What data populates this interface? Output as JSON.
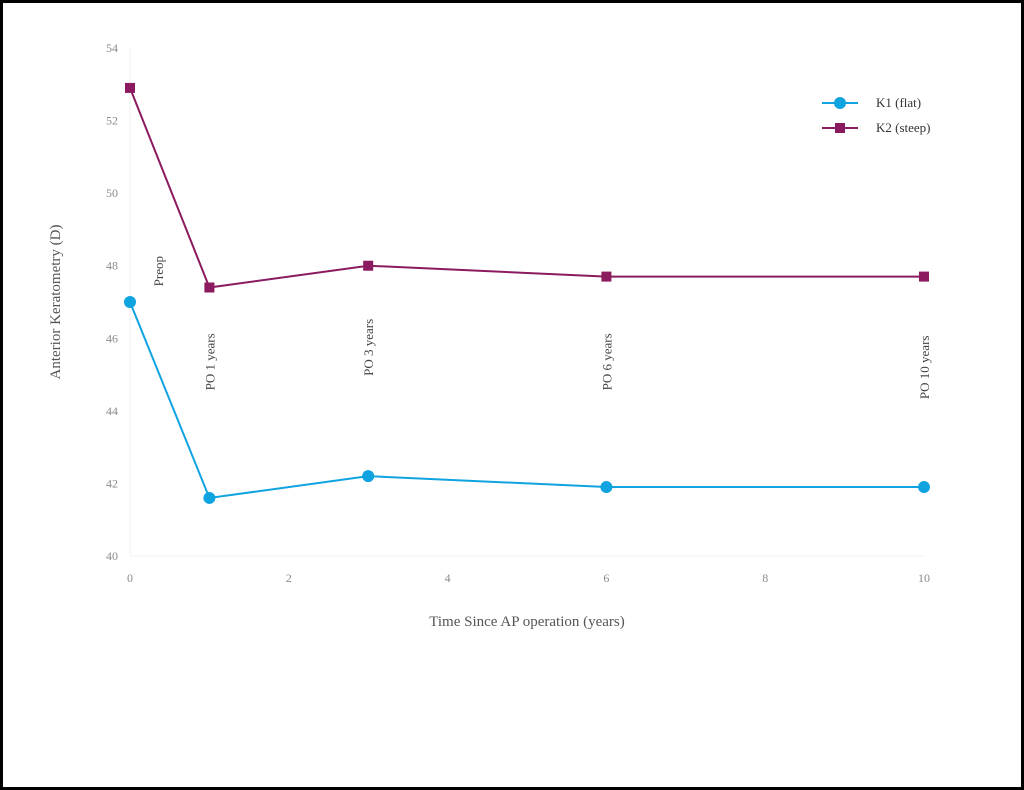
{
  "chart_data": {
    "type": "line",
    "title": "",
    "xlabel": "Time Since AP operation (years)",
    "ylabel": "Anterior Keratometry (D)",
    "xlim": [
      0,
      10
    ],
    "ylim": [
      40,
      54
    ],
    "x_ticks": [
      0,
      2,
      4,
      6,
      8,
      10
    ],
    "y_ticks": [
      40,
      42,
      44,
      46,
      48,
      50,
      52,
      54
    ],
    "grid": false,
    "legend": "top-right",
    "series": [
      {
        "name": "K1 (flat)",
        "color": "#0fa3e0",
        "marker": "circle",
        "x": [
          0,
          1,
          3,
          6,
          10
        ],
        "y": [
          47.0,
          41.6,
          42.2,
          41.9,
          41.9
        ]
      },
      {
        "name": "K2 (steep)",
        "color": "#8b1a5e",
        "marker": "square",
        "x": [
          0,
          1,
          3,
          6,
          10
        ],
        "y": [
          52.9,
          47.4,
          48.0,
          47.7,
          47.7
        ]
      }
    ],
    "annotations": [
      {
        "text": "Preop",
        "x": 0.35,
        "y": 47.85
      },
      {
        "text": "PO 1 years",
        "x": 1.0,
        "y": 45.35
      },
      {
        "text": "PO 3 years",
        "x": 3.0,
        "y": 45.75
      },
      {
        "text": "PO 6 years",
        "x": 6.0,
        "y": 45.35
      },
      {
        "text": "PO 10 years",
        "x": 10.0,
        "y": 45.2
      }
    ]
  }
}
